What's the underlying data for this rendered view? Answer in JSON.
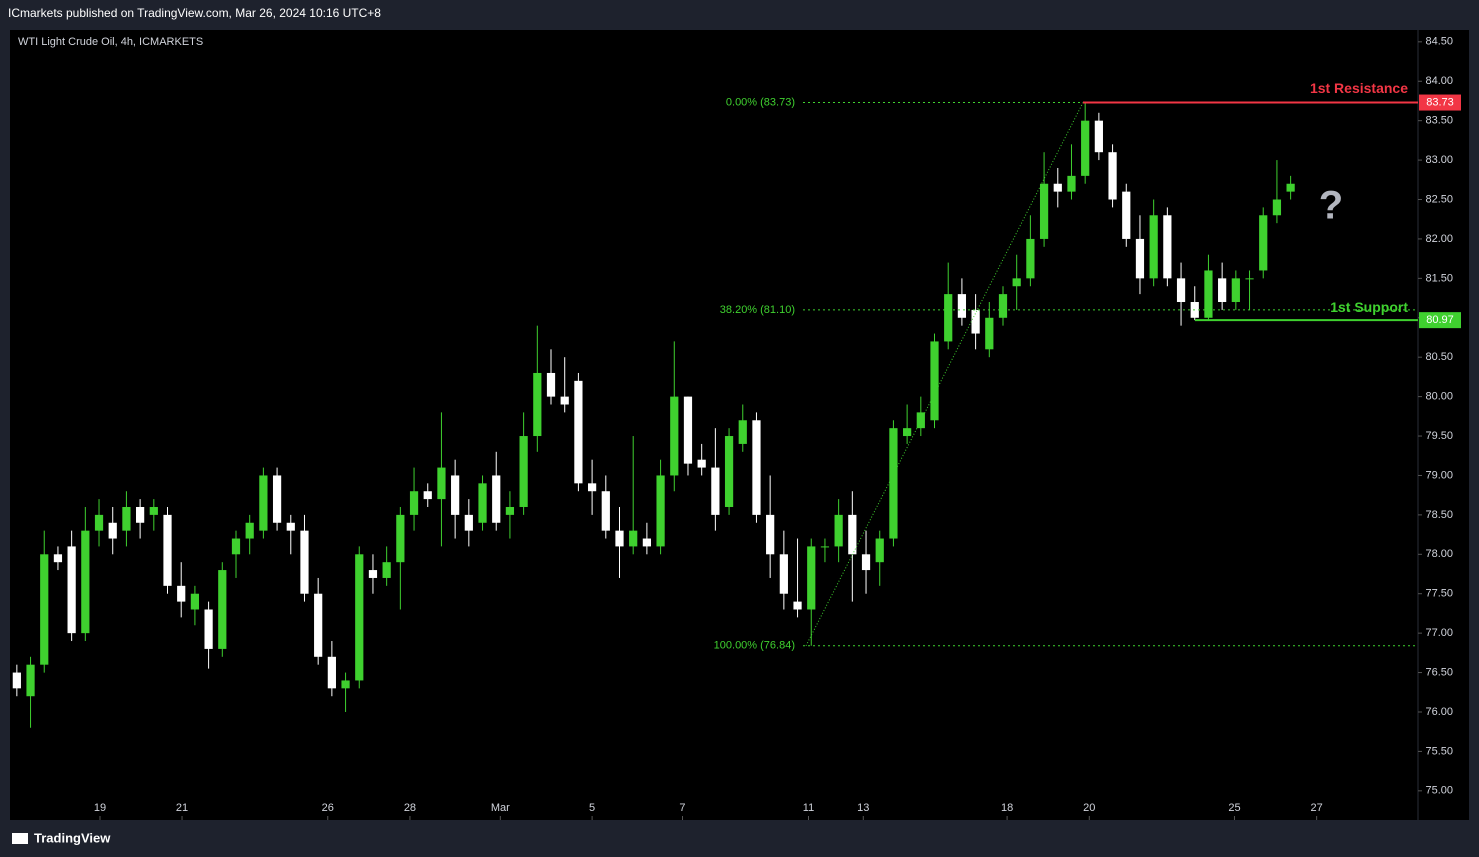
{
  "header": "ICmarkets published on TradingView.com, Mar 26, 2024 10:16 UTC+8",
  "footer": "TradingView",
  "chart_data": {
    "type": "candlestick",
    "title": "WTI Light Crude Oil, 4h, ICMARKETS",
    "open": [
      76.5,
      76.2,
      76.6,
      78.0,
      78.1,
      77.0,
      78.3,
      78.4,
      78.3,
      78.6,
      78.5,
      78.5,
      77.6,
      77.3,
      77.3,
      76.8,
      78.0,
      78.2,
      78.3,
      79.0,
      78.4,
      78.3,
      77.5,
      76.7,
      76.3,
      76.4,
      77.8,
      77.7,
      77.9,
      78.5,
      78.8,
      78.7,
      79.0,
      78.5,
      78.4,
      79.0,
      78.5,
      78.6,
      79.5,
      80.3,
      80.0,
      80.2,
      78.9,
      78.8,
      78.3,
      78.1,
      78.2,
      78.1,
      79.0,
      80.0,
      79.2,
      79.1,
      78.6,
      79.4,
      79.7,
      78.5,
      78.0,
      77.4,
      77.3,
      78.1,
      78.1,
      78.5,
      78.0,
      77.9,
      78.2,
      79.5,
      79.6,
      79.7,
      80.7,
      81.3,
      81.1,
      80.6,
      81.0,
      81.4,
      81.5,
      82.0,
      82.7,
      82.6,
      82.8,
      83.5,
      83.1,
      82.6,
      82.0,
      81.5,
      82.3,
      81.5,
      81.2,
      81.0,
      81.5,
      81.2,
      81.5,
      81.6,
      82.3,
      82.6
    ],
    "high": [
      76.6,
      76.7,
      78.3,
      78.1,
      78.3,
      78.6,
      78.7,
      78.6,
      78.8,
      78.7,
      78.7,
      78.6,
      77.9,
      77.6,
      77.4,
      77.9,
      78.3,
      78.5,
      79.1,
      79.1,
      78.5,
      78.5,
      77.7,
      76.9,
      76.5,
      78.1,
      78.0,
      78.1,
      78.6,
      79.1,
      78.9,
      79.8,
      79.2,
      78.7,
      79.0,
      79.3,
      78.8,
      79.8,
      80.9,
      80.6,
      80.5,
      80.3,
      79.2,
      79.0,
      78.6,
      79.5,
      78.4,
      79.2,
      80.7,
      80.0,
      79.4,
      79.6,
      79.6,
      79.9,
      79.8,
      79.0,
      78.3,
      78.2,
      78.2,
      78.2,
      78.7,
      78.8,
      78.3,
      78.3,
      79.7,
      79.9,
      80.0,
      80.8,
      81.7,
      81.5,
      81.3,
      81.2,
      81.4,
      81.8,
      82.3,
      83.1,
      82.9,
      83.2,
      83.73,
      83.6,
      83.2,
      82.7,
      82.3,
      82.5,
      82.4,
      81.7,
      81.4,
      81.8,
      81.7,
      81.6,
      81.6,
      82.4,
      83.0,
      82.8
    ],
    "low": [
      76.2,
      75.8,
      76.5,
      77.8,
      76.9,
      76.9,
      78.1,
      78.0,
      78.1,
      78.2,
      78.3,
      77.5,
      77.2,
      77.1,
      76.55,
      76.7,
      77.7,
      78.0,
      78.2,
      78.3,
      78.0,
      77.4,
      76.6,
      76.2,
      76.0,
      76.3,
      77.5,
      77.6,
      77.3,
      78.3,
      78.6,
      78.1,
      78.2,
      78.1,
      78.3,
      78.3,
      78.2,
      78.5,
      79.3,
      79.9,
      79.8,
      78.8,
      78.5,
      78.2,
      77.7,
      78.0,
      78.0,
      78.0,
      78.8,
      79.0,
      79.0,
      78.3,
      78.5,
      79.3,
      78.4,
      77.7,
      77.3,
      77.2,
      76.84,
      77.9,
      77.9,
      77.4,
      77.5,
      77.6,
      78.1,
      79.4,
      79.5,
      79.6,
      80.6,
      80.9,
      80.6,
      80.5,
      80.9,
      81.1,
      81.4,
      81.9,
      82.4,
      82.5,
      82.7,
      83.0,
      82.4,
      81.9,
      81.3,
      81.4,
      81.4,
      80.9,
      80.97,
      80.97,
      81.1,
      81.1,
      81.1,
      81.5,
      82.2,
      82.5
    ],
    "close": [
      76.3,
      76.6,
      78.0,
      77.9,
      77.0,
      78.3,
      78.5,
      78.2,
      78.6,
      78.4,
      78.6,
      77.6,
      77.4,
      77.5,
      76.8,
      77.8,
      78.2,
      78.4,
      79.0,
      78.4,
      78.3,
      77.5,
      76.7,
      76.3,
      76.4,
      78.0,
      77.7,
      77.9,
      78.5,
      78.8,
      78.7,
      79.1,
      78.5,
      78.3,
      78.9,
      78.4,
      78.6,
      79.5,
      80.3,
      80.0,
      79.9,
      78.9,
      78.8,
      78.3,
      78.1,
      78.3,
      78.1,
      79.0,
      80.0,
      79.15,
      79.1,
      78.5,
      79.5,
      79.7,
      78.5,
      78.0,
      77.5,
      77.3,
      78.1,
      78.1,
      78.5,
      78.0,
      77.8,
      78.2,
      79.6,
      79.6,
      79.8,
      80.7,
      81.3,
      81.0,
      80.8,
      81.0,
      81.3,
      81.5,
      82.0,
      82.7,
      82.6,
      82.8,
      83.5,
      83.1,
      82.5,
      82.0,
      81.5,
      82.3,
      81.5,
      81.2,
      81.0,
      81.6,
      81.2,
      81.5,
      81.5,
      82.3,
      82.5,
      82.7
    ],
    "up_color": "#3fd12f",
    "down_color": "#ffffff",
    "xlim": [
      -0.5,
      102.3
    ],
    "xticks": [
      {
        "value": 6.07,
        "label": "19"
      },
      {
        "value": 12.06,
        "label": "21"
      },
      {
        "value": 22.7,
        "label": "26"
      },
      {
        "value": 28.7,
        "label": "28"
      },
      {
        "value": 35.3,
        "label": "Mar"
      },
      {
        "value": 42.0,
        "label": "5"
      },
      {
        "value": 48.6,
        "label": "7"
      },
      {
        "value": 57.8,
        "label": "11"
      },
      {
        "value": 61.8,
        "label": "13"
      },
      {
        "value": 72.3,
        "label": "18"
      },
      {
        "value": 78.3,
        "label": "20"
      },
      {
        "value": 88.9,
        "label": "25"
      },
      {
        "value": 94.9,
        "label": "27"
      }
    ],
    "ylim": [
      74.63,
      84.65
    ],
    "yticks": [
      {
        "value": 75,
        "label": "75.00"
      },
      {
        "value": 75.5,
        "label": "75.50"
      },
      {
        "value": 76,
        "label": "76.00"
      },
      {
        "value": 76.5,
        "label": "76.50"
      },
      {
        "value": 77,
        "label": "77.00"
      },
      {
        "value": 77.5,
        "label": "77.50"
      },
      {
        "value": 78,
        "label": "78.00"
      },
      {
        "value": 78.5,
        "label": "78.50"
      },
      {
        "value": 79,
        "label": "79.00"
      },
      {
        "value": 79.5,
        "label": "79.50"
      },
      {
        "value": 80,
        "label": "80.00"
      },
      {
        "value": 80.5,
        "label": "80.50"
      },
      {
        "value": 81,
        "label": "81.00"
      },
      {
        "value": 81.5,
        "label": "81.50"
      },
      {
        "value": 82,
        "label": "82.00"
      },
      {
        "value": 82.5,
        "label": "82.50"
      },
      {
        "value": 83,
        "label": "83.00"
      },
      {
        "value": 83.5,
        "label": "83.50"
      },
      {
        "value": 84,
        "label": "84.00"
      },
      {
        "value": 84.5,
        "label": "84.50"
      }
    ],
    "fib": {
      "color": "#3fd12f",
      "levels": [
        {
          "label": "0.00% (83.73)",
          "value": 83.73
        },
        {
          "label": "38.20% (81.10)",
          "value": 81.1
        },
        {
          "label": "100.00% (76.84)",
          "value": 76.84
        }
      ]
    },
    "resistance": {
      "name": "1st Resistance",
      "value": 83.73,
      "color": "#f23645"
    },
    "support": {
      "name": "1st Support",
      "value": 80.97,
      "color": "#3fd12f"
    },
    "annotation": "?"
  }
}
